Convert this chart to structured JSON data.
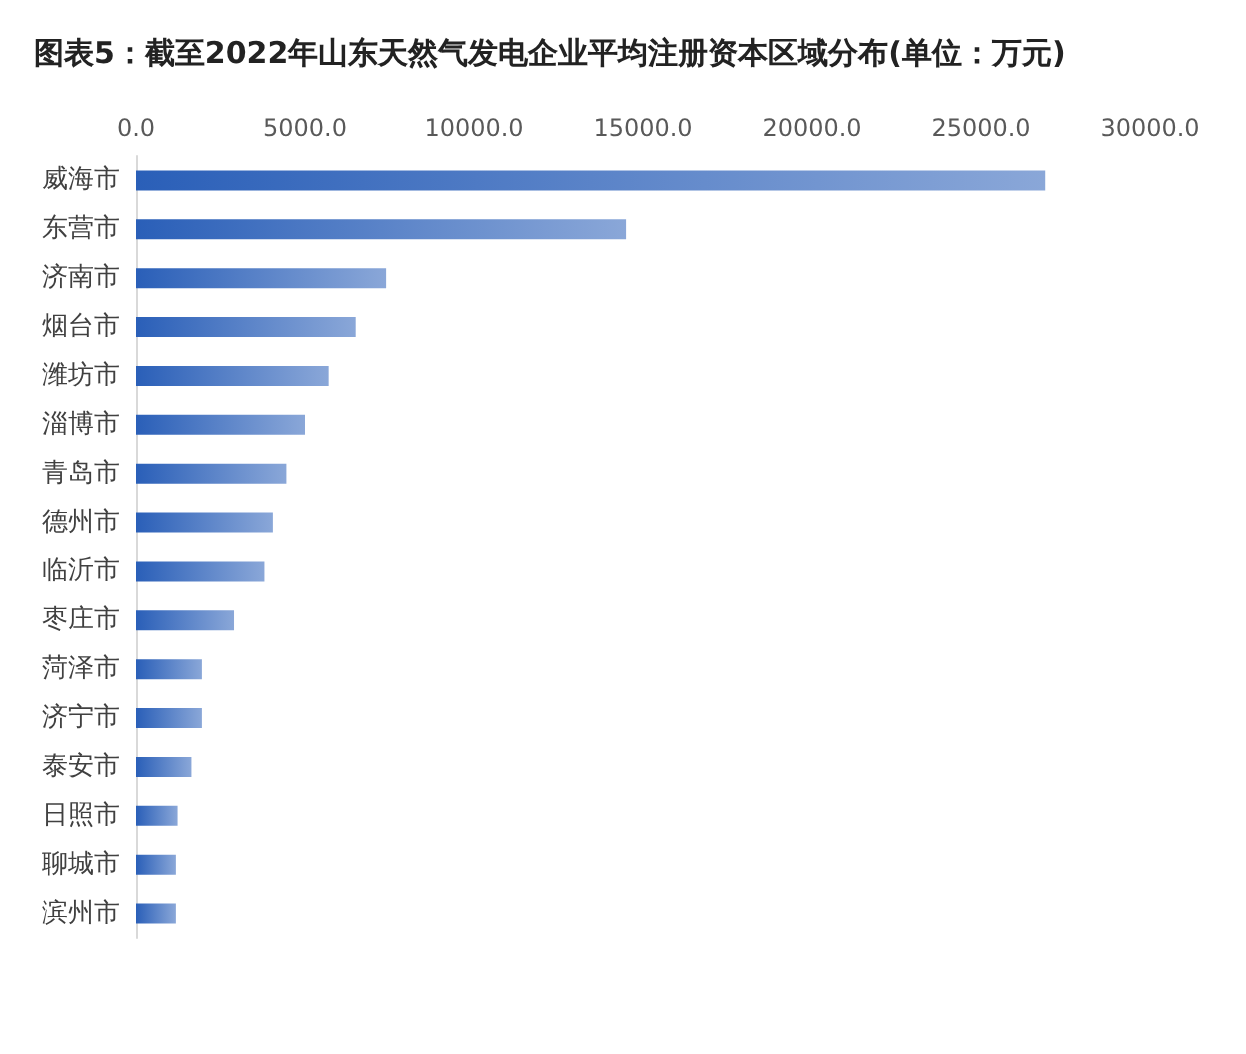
{
  "chart_data": {
    "type": "bar",
    "orientation": "horizontal",
    "title": "图表5：截至2022年山东天然气发电企业平均注册资本区域分布(单位：万元)",
    "categories": [
      "威海市",
      "东营市",
      "济南市",
      "烟台市",
      "潍坊市",
      "淄博市",
      "青岛市",
      "德州市",
      "临沂市",
      "枣庄市",
      "菏泽市",
      "济宁市",
      "泰安市",
      "日照市",
      "聊城市",
      "滨州市"
    ],
    "values": [
      26900,
      14500,
      7400,
      6500,
      5700,
      5000,
      4450,
      4050,
      3800,
      2900,
      1950,
      1950,
      1640,
      1230,
      1180,
      1180
    ],
    "color": "#2a5fb8",
    "xlim": [
      0,
      30000
    ],
    "xticks": [
      {
        "value": 0,
        "label": "0.0"
      },
      {
        "value": 5000,
        "label": "5000.0"
      },
      {
        "value": 10000,
        "label": "10000.0"
      },
      {
        "value": 15000,
        "label": "15000.0"
      },
      {
        "value": 20000,
        "label": "20000.0"
      },
      {
        "value": 25000,
        "label": "25000.0"
      },
      {
        "value": 30000,
        "label": "30000.0"
      }
    ],
    "grid": false
  }
}
